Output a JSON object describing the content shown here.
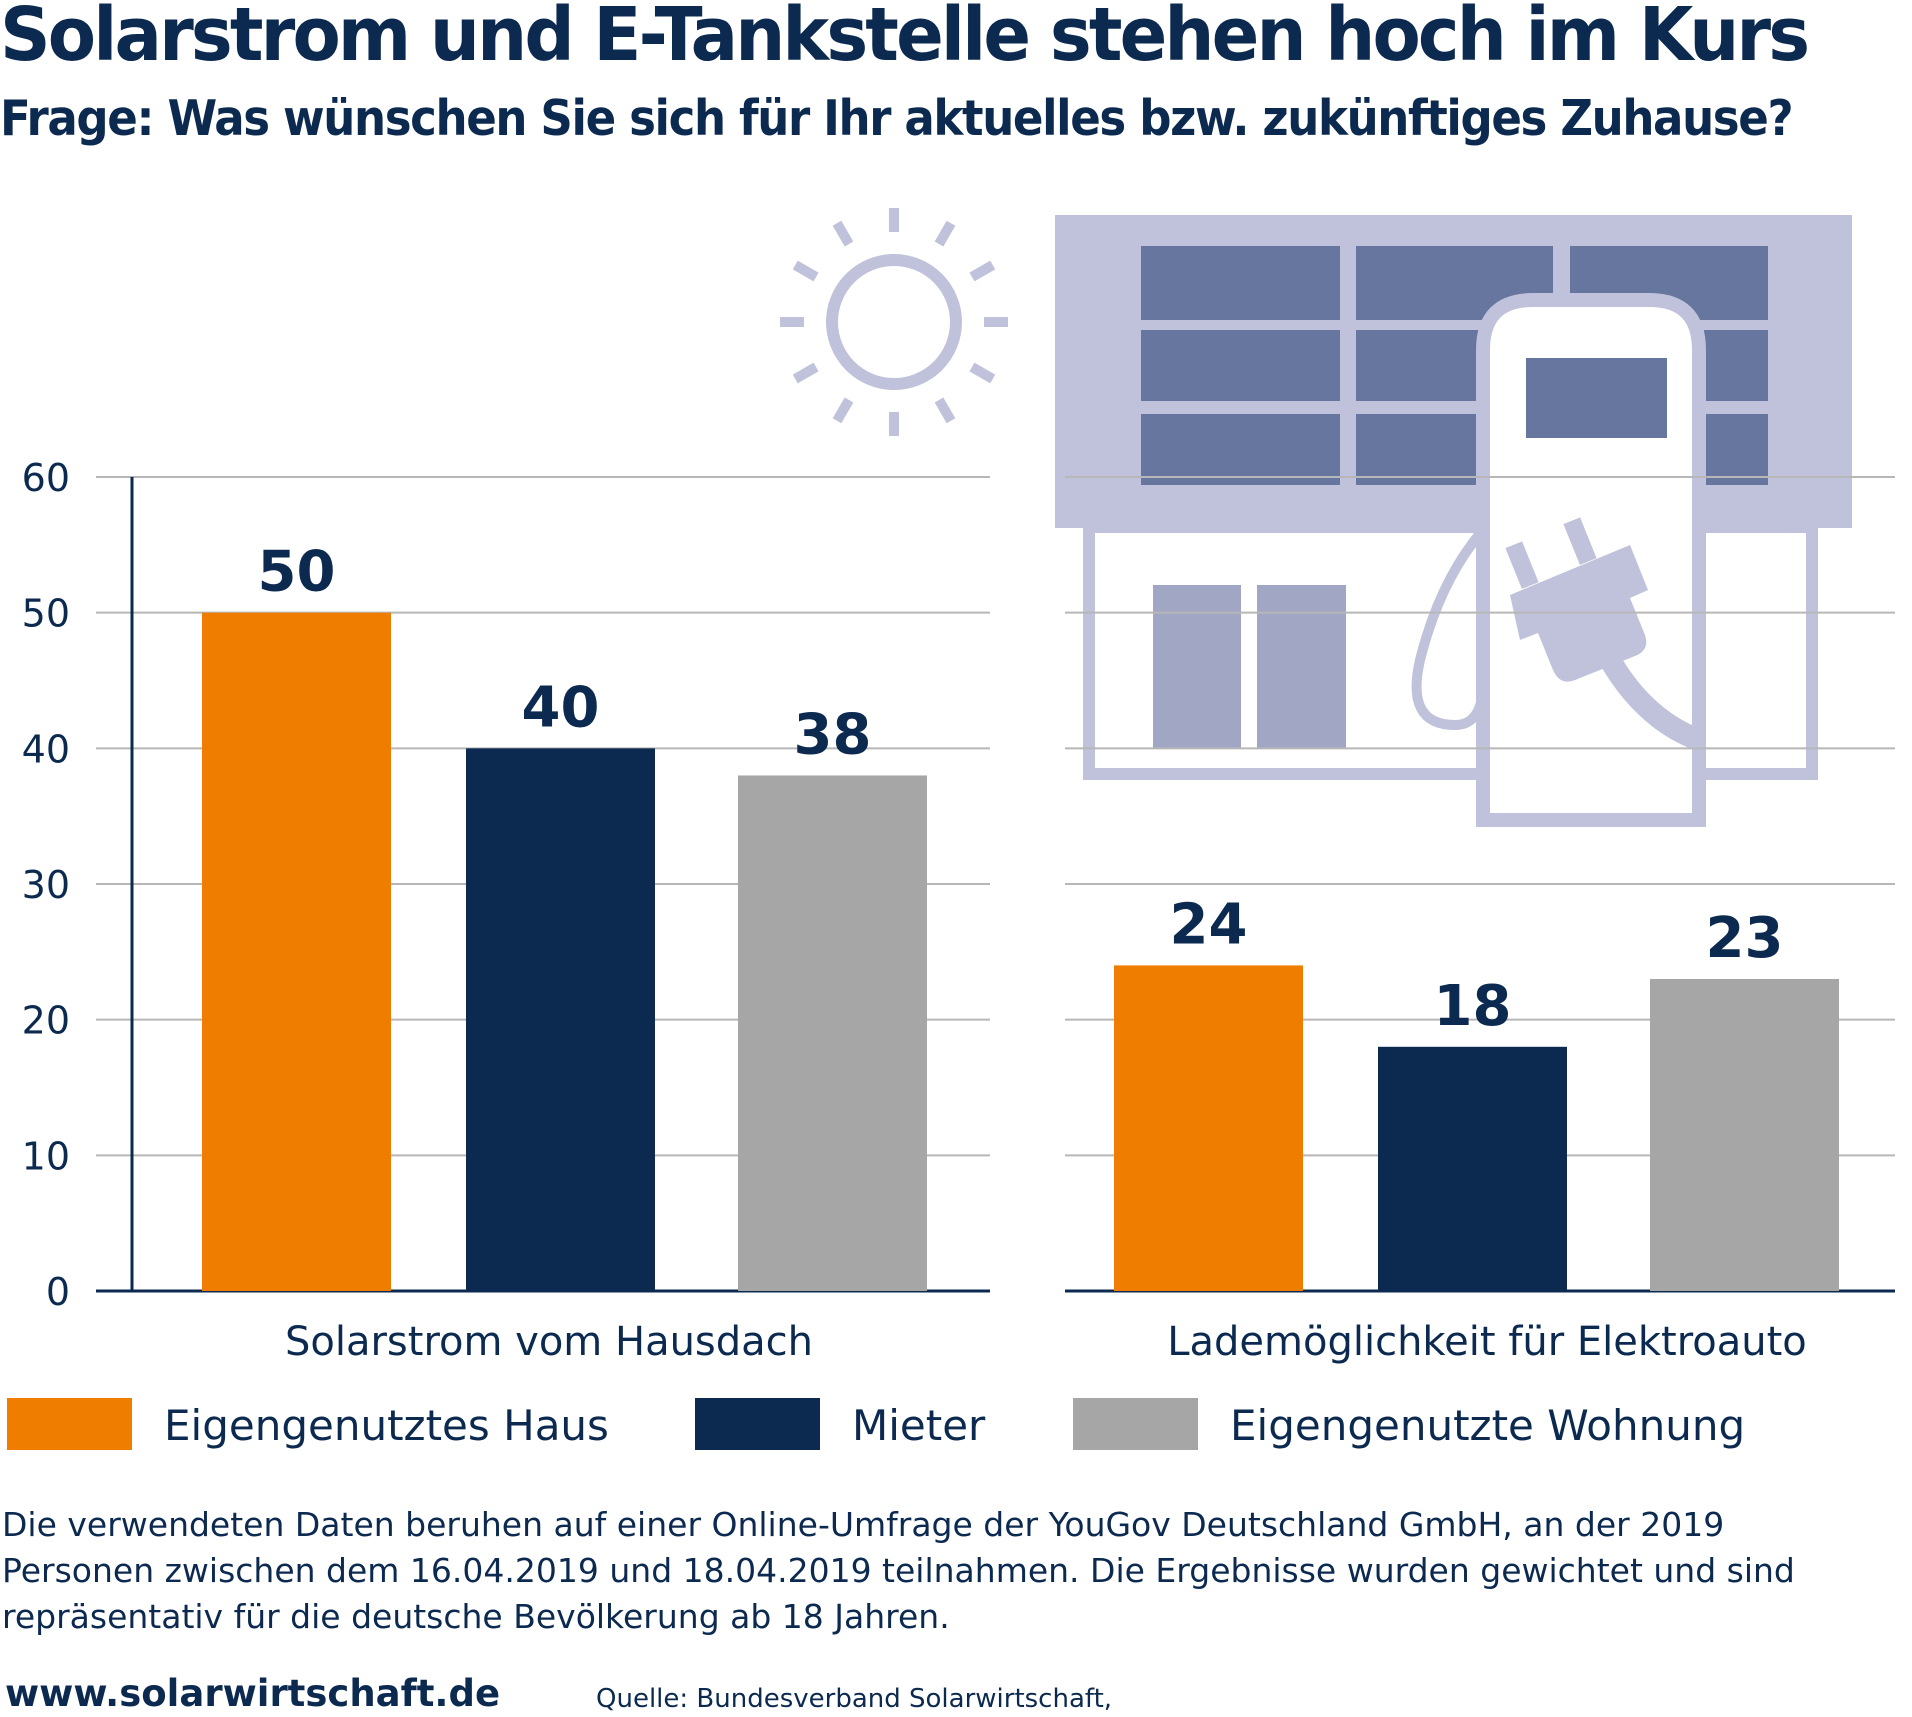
{
  "title": "Solarstrom und E-Tankstelle stehen hoch im Kurs",
  "subtitle": "Frage: Was wünschen Sie sich für Ihr aktuelles bzw. zukünftiges Zuhause?",
  "chart_data": {
    "type": "bar",
    "categories": [
      "Solarstrom vom Hausdach",
      "Lademöglichkeit für Elektroauto"
    ],
    "series": [
      {
        "name": "Eigengenutztes Haus",
        "values": [
          50,
          24
        ],
        "color": "#ee7d00"
      },
      {
        "name": "Mieter",
        "values": [
          40,
          18
        ],
        "color": "#0c2a50"
      },
      {
        "name": "Eigengenutzte Wohnung",
        "values": [
          38,
          23
        ],
        "color": "#a6a6a6"
      }
    ],
    "y_ticks": [
      "0",
      "10",
      "20",
      "30",
      "40",
      "50",
      "60"
    ],
    "ylim": [
      0,
      60
    ],
    "grid": true,
    "legend_position": "bottom",
    "icons": [
      "sun-icon",
      "solar-roof-house-icon",
      "charging-station-icon",
      "plug-icon"
    ]
  },
  "footnote": [
    "Die verwendeten Daten beruhen auf einer Online-Umfrage der YouGov Deutschland GmbH, an der 2019",
    "Personen zwischen dem 16.04.2019 und 18.04.2019 teilnahmen. Die Ergebnisse wurden gewichtet und sind",
    "repräsentativ für die deutsche Bevölkerung ab 18 Jahren."
  ],
  "website": "www.solarwirtschaft.de",
  "source": "Quelle: Bundesverband Solarwirtschaft,"
}
